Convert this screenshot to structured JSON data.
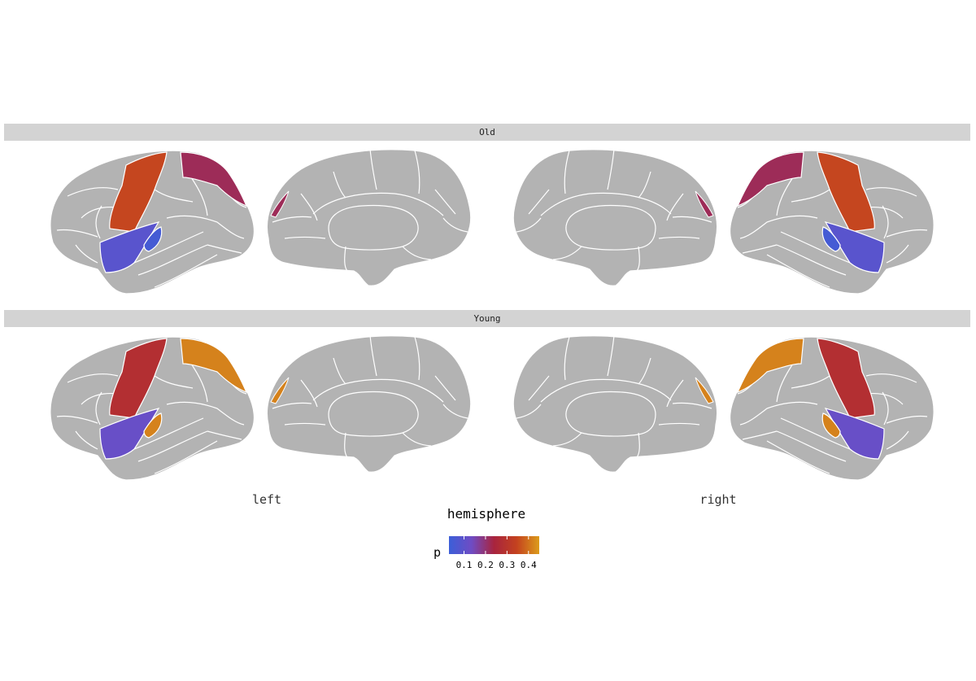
{
  "chart_data": {
    "type": "brain_atlas",
    "facets": [
      {
        "label": "Old",
        "regions": {
          "precentral": 0.35,
          "superiorparietal": 0.22,
          "transversetemporal": 0.05,
          "superiortemporal": 0.09
        }
      },
      {
        "label": "Young",
        "regions": {
          "precentral": 0.28,
          "superiorparietal": 0.42,
          "transversetemporal": 0.42,
          "superiortemporal": 0.12
        }
      }
    ],
    "x_labels": [
      "left",
      "right"
    ],
    "xlabel": "hemisphere",
    "fill_label": "p",
    "color_scale": {
      "limits": [
        0.03,
        0.45
      ],
      "stops": [
        "#3b5fd8",
        "#6f4cc4",
        "#a8243e",
        "#c4421f",
        "#dc9c1b"
      ]
    },
    "legend": {
      "title": "p",
      "ticks": [
        0.1,
        0.2,
        0.3,
        0.4
      ],
      "tick_labels": [
        "0.1",
        "0.2",
        "0.3",
        "0.4"
      ],
      "position": "bottom"
    },
    "default_fill": "#b3b3b3",
    "border_color": "#ffffff"
  }
}
